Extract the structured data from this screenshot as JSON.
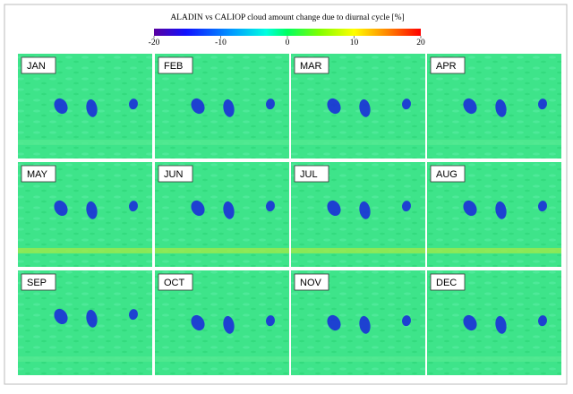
{
  "chart_data": {
    "type": "map-grid",
    "title": "ALADIN vs CALIOP cloud amount change due to diurnal cycle [%]",
    "panels": [
      "JAN",
      "FEB",
      "MAR",
      "APR",
      "MAY",
      "JUN",
      "JUL",
      "AUG",
      "SEP",
      "OCT",
      "NOV",
      "DEC"
    ],
    "clim": [
      -20,
      20
    ],
    "cticks": [
      -20,
      -10,
      0,
      10,
      20
    ]
  }
}
